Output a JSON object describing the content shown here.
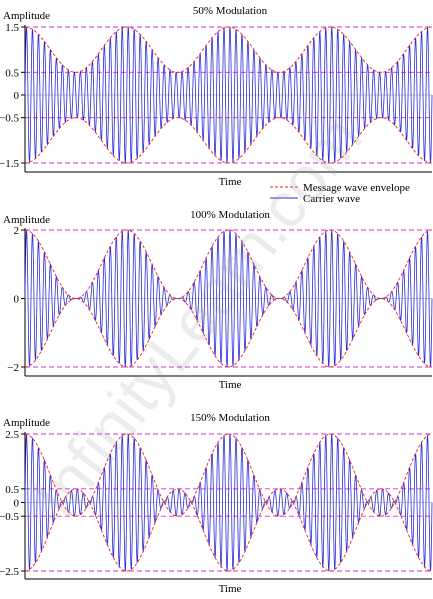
{
  "watermark": "InfinityLearn.com",
  "legend": {
    "position": "between first and second panels, right",
    "entries": [
      {
        "label": "Message wave envelope",
        "color": "#ee2222",
        "style": "dashed"
      },
      {
        "label": "Carrier wave",
        "color": "#2b2bd6",
        "style": "solid"
      }
    ]
  },
  "chart_data": [
    {
      "type": "line",
      "title": "50% Modulation",
      "xlabel": "Time",
      "ylabel": "Amplitude",
      "modulation_index": 0.5,
      "ylim": [
        -1.5,
        1.5
      ],
      "yticks": [
        {
          "value": 1.5,
          "label": "1.5"
        },
        {
          "value": 0.5,
          "label": "0.5"
        },
        {
          "value": 0,
          "label": "0"
        },
        {
          "value": -0.5,
          "label": "−0.5"
        },
        {
          "value": -1.5,
          "label": "−1.5"
        }
      ],
      "reference_lines": [
        1.5,
        0.5,
        -0.5,
        -1.5
      ],
      "message_cycles": 4,
      "carrier_cycles": 68,
      "series": [
        {
          "name": "Message wave envelope",
          "color": "#ee2222",
          "style": "dashed"
        },
        {
          "name": "Carrier wave",
          "color": "#2b2bd6",
          "style": "solid"
        }
      ]
    },
    {
      "type": "line",
      "title": "100% Modulation",
      "xlabel": "Time",
      "ylabel": "Amplitude",
      "modulation_index": 1.0,
      "ylim": [
        -2,
        2
      ],
      "yticks": [
        {
          "value": 2,
          "label": "2"
        },
        {
          "value": 0,
          "label": "0"
        },
        {
          "value": -2,
          "label": "−2"
        }
      ],
      "reference_lines": [
        2,
        -2
      ],
      "message_cycles": 4,
      "carrier_cycles": 68,
      "series": [
        {
          "name": "Message wave envelope",
          "color": "#ee2222",
          "style": "dashed"
        },
        {
          "name": "Carrier wave",
          "color": "#2b2bd6",
          "style": "solid"
        }
      ]
    },
    {
      "type": "line",
      "title": "150% Modulation",
      "xlabel": "Time",
      "ylabel": "Amplitude",
      "modulation_index": 1.5,
      "ylim": [
        -2.5,
        2.5
      ],
      "yticks": [
        {
          "value": 2.5,
          "label": "2.5"
        },
        {
          "value": 0.5,
          "label": "0.5"
        },
        {
          "value": 0,
          "label": "0"
        },
        {
          "value": -0.5,
          "label": "−0.5"
        },
        {
          "value": -2.5,
          "label": "−2.5"
        }
      ],
      "reference_lines": [
        2.5,
        0.5,
        -0.5,
        -2.5
      ],
      "message_cycles": 4,
      "carrier_cycles": 68,
      "series": [
        {
          "name": "Message wave envelope",
          "color": "#ee2222",
          "style": "dashed"
        },
        {
          "name": "Carrier wave",
          "color": "#2b2bd6",
          "style": "solid"
        }
      ]
    }
  ]
}
